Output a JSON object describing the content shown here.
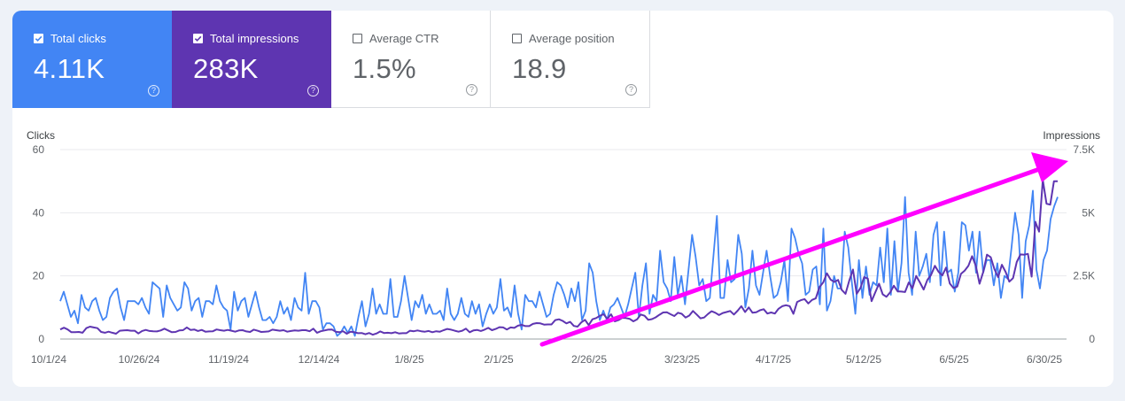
{
  "cards": [
    {
      "label": "Total clicks",
      "value": "4.11K",
      "checked": true,
      "color": "#4285f4"
    },
    {
      "label": "Total impressions",
      "value": "283K",
      "checked": true,
      "color": "#5e35b1"
    },
    {
      "label": "Average CTR",
      "value": "1.5%",
      "checked": false
    },
    {
      "label": "Average position",
      "value": "18.9",
      "checked": false
    }
  ],
  "help_icon": "?",
  "chart_data": {
    "type": "line",
    "ylabel_left": "Clicks",
    "ylabel_right": "Impressions",
    "y_ticks_left": [
      "60",
      "40",
      "20",
      "0"
    ],
    "y_ticks_right": [
      "7.5K",
      "5K",
      "2.5K",
      "0"
    ],
    "ylim_left": [
      0,
      60
    ],
    "ylim_right": [
      0,
      7500
    ],
    "x_tick_labels": [
      "10/1/24",
      "10/26/24",
      "11/19/24",
      "12/14/24",
      "1/8/25",
      "2/1/25",
      "2/26/25",
      "3/23/25",
      "4/17/25",
      "5/12/25",
      "6/5/25",
      "6/30/25"
    ],
    "grid": true,
    "series": [
      {
        "name": "Clicks",
        "color": "#4285f4",
        "axis": "left",
        "values": [
          12,
          15,
          11,
          7,
          9,
          5,
          14,
          10,
          9,
          12,
          13,
          9,
          6,
          7,
          13,
          15,
          16,
          10,
          6,
          12,
          12,
          12,
          11,
          13,
          10,
          8,
          18,
          17,
          16,
          7,
          17,
          13,
          11,
          9,
          10,
          18,
          16,
          9,
          12,
          13,
          7,
          12,
          12,
          11,
          17,
          12,
          10,
          9,
          3,
          15,
          9,
          12,
          13,
          7,
          11,
          15,
          10,
          6,
          6,
          7,
          5,
          7,
          12,
          8,
          10,
          6,
          13,
          10,
          9,
          21,
          8,
          12,
          12,
          10,
          3,
          5,
          5,
          4,
          1,
          2,
          4,
          2,
          4,
          1,
          7,
          12,
          4,
          8,
          16,
          8,
          11,
          8,
          8,
          19,
          7,
          7,
          12,
          20,
          13,
          6,
          12,
          10,
          14,
          8,
          11,
          8,
          8,
          9,
          6,
          16,
          8,
          6,
          8,
          13,
          8,
          7,
          12,
          8,
          11,
          4,
          8,
          11,
          8,
          10,
          19,
          9,
          10,
          7,
          17,
          8,
          3,
          14,
          12,
          12,
          10,
          15,
          11,
          7,
          8,
          14,
          18,
          17,
          14,
          10,
          16,
          12,
          18,
          6,
          9,
          24,
          21,
          12,
          6,
          9,
          6,
          10,
          11,
          13,
          10,
          7,
          11,
          16,
          21,
          7,
          17,
          24,
          8,
          14,
          12,
          28,
          18,
          16,
          12,
          26,
          14,
          20,
          11,
          22,
          33,
          26,
          17,
          19,
          12,
          13,
          26,
          39,
          13,
          13,
          25,
          18,
          19,
          33,
          27,
          10,
          16,
          28,
          17,
          14,
          21,
          28,
          20,
          13,
          14,
          18,
          25,
          12,
          35,
          32,
          27,
          24,
          14,
          15,
          22,
          23,
          11,
          35,
          9,
          12,
          20,
          16,
          16,
          34,
          29,
          18,
          8,
          25,
          13,
          23,
          14,
          18,
          17,
          29,
          18,
          35,
          14,
          31,
          15,
          24,
          45,
          21,
          14,
          34,
          20,
          23,
          27,
          18,
          33,
          37,
          17,
          34,
          21,
          22,
          15,
          21,
          37,
          36,
          28,
          34,
          21,
          34,
          21,
          25,
          25,
          17,
          24,
          13,
          20,
          19,
          29,
          40,
          33,
          13,
          31,
          36,
          47,
          22,
          16,
          25,
          28,
          38,
          42,
          45
        ]
      },
      {
        "name": "Impressions",
        "color": "#5e35b1",
        "axis": "right",
        "values": [
          380,
          450,
          380,
          270,
          270,
          280,
          250,
          430,
          490,
          460,
          430,
          280,
          250,
          290,
          250,
          210,
          330,
          340,
          350,
          330,
          330,
          220,
          320,
          360,
          320,
          310,
          300,
          340,
          410,
          340,
          270,
          280,
          340,
          350,
          460,
          360,
          380,
          320,
          360,
          290,
          300,
          310,
          380,
          350,
          330,
          360,
          330,
          290,
          340,
          350,
          300,
          280,
          370,
          330,
          280,
          290,
          300,
          370,
          350,
          330,
          350,
          290,
          320,
          340,
          330,
          350,
          350,
          310,
          410,
          250,
          310,
          340,
          370,
          380,
          290,
          270,
          310,
          210,
          290,
          270,
          230,
          240,
          190,
          240,
          170,
          220,
          300,
          240,
          250,
          230,
          270,
          220,
          230,
          230,
          330,
          310,
          340,
          310,
          290,
          320,
          270,
          310,
          290,
          350,
          400,
          370,
          330,
          290,
          330,
          410,
          270,
          340,
          360,
          320,
          370,
          440,
          350,
          400,
          470,
          460,
          380,
          460,
          440,
          530,
          560,
          510,
          510,
          600,
          630,
          620,
          570,
          580,
          580,
          750,
          780,
          720,
          620,
          680,
          520,
          490,
          660,
          760,
          550,
          780,
          830,
          920,
          980,
          800,
          980,
          700,
          750,
          840,
          830,
          800,
          700,
          780,
          970,
          920,
          760,
          790,
          860,
          960,
          1050,
          1060,
          980,
          910,
          1040,
          1000,
          850,
          930,
          1110,
          970,
          820,
          850,
          990,
          1100,
          1040,
          950,
          1030,
          1070,
          1110,
          970,
          1120,
          1300,
          1070,
          1250,
          1040,
          1060,
          1140,
          1180,
          1010,
          1050,
          1010,
          1200,
          1300,
          1340,
          1300,
          1000,
          1470,
          1540,
          1580,
          1410,
          1550,
          1610,
          2060,
          2240,
          2600,
          2350,
          2260,
          2340,
          1940,
          1790,
          2310,
          2750,
          1790,
          2020,
          2450,
          2390,
          1500,
          1850,
          2190,
          1770,
          1670,
          1850,
          2110,
          1890,
          1880,
          1860,
          2240,
          2010,
          2500,
          2240,
          1960,
          2340,
          2540,
          2900,
          2660,
          2520,
          2830,
          2200,
          2020,
          2080,
          2580,
          2710,
          2900,
          3280,
          2900,
          2190,
          2660,
          3340,
          3240,
          2770,
          2450,
          2940,
          2660,
          2270,
          2410,
          3050,
          3350,
          3340,
          3370,
          2470,
          4640,
          4250,
          6300,
          5360,
          5320,
          6250,
          6250
        ]
      }
    ],
    "annotations": [
      {
        "type": "arrow",
        "color": "#ff00ff",
        "meaning": "upward trend"
      }
    ]
  }
}
